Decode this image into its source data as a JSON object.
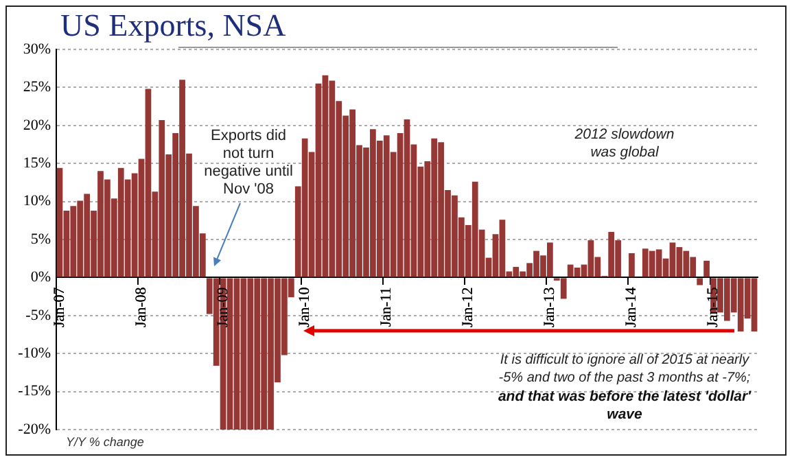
{
  "chart_data": {
    "type": "bar",
    "title": "US Exports, NSA",
    "annotations": [
      "Exports did not turn negative until Nov '08",
      "2012 slowdown was global",
      "It is difficult to ignore all of 2015 at nearly -5% and two of the past 3 months at -7%;",
      "and that was before the latest 'dollar' wave",
      "Y/Y % change"
    ],
    "categories": [
      "Jan-07",
      null,
      null,
      null,
      null,
      null,
      null,
      null,
      null,
      null,
      null,
      null,
      "Jan-08",
      null,
      null,
      null,
      null,
      null,
      null,
      null,
      null,
      null,
      null,
      null,
      "Jan-09",
      null,
      null,
      null,
      null,
      null,
      null,
      null,
      null,
      null,
      null,
      null,
      "Jan-10",
      null,
      null,
      null,
      null,
      null,
      null,
      null,
      null,
      null,
      null,
      null,
      "Jan-11",
      null,
      null,
      null,
      null,
      null,
      null,
      null,
      null,
      null,
      null,
      null,
      "Jan-12",
      null,
      null,
      null,
      null,
      null,
      null,
      null,
      null,
      null,
      null,
      null,
      "Jan-13",
      null,
      null,
      null,
      null,
      null,
      null,
      null,
      null,
      null,
      null,
      null,
      "Jan-14",
      null,
      null,
      null,
      null,
      null,
      null,
      null,
      null,
      null,
      null,
      null,
      "Jan-15",
      null,
      null,
      null,
      null,
      null,
      null
    ],
    "values": [
      14.4,
      8.8,
      9.4,
      10.1,
      11.0,
      8.8,
      14.0,
      12.9,
      10.4,
      14.4,
      12.9,
      13.7,
      15.6,
      24.8,
      11.3,
      20.7,
      16.2,
      19.0,
      26.0,
      16.3,
      9.4,
      5.8,
      -4.8,
      -11.6,
      -20,
      -20,
      -20,
      -20,
      -20,
      -20,
      -20,
      -20,
      -13.8,
      -10.2,
      -2.6,
      12.0,
      18.3,
      16.5,
      25.5,
      26.6,
      25.9,
      23.2,
      21.3,
      22.1,
      17.4,
      17.1,
      19.5,
      18.0,
      18.7,
      16.5,
      19.0,
      20.8,
      17.5,
      14.6,
      15.3,
      18.3,
      17.8,
      11.5,
      10.8,
      7.9,
      6.9,
      12.6,
      6.3,
      2.6,
      5.7,
      7.6,
      0.8,
      1.4,
      0.8,
      1.9,
      3.5,
      2.9,
      4.6,
      -0.4,
      -2.8,
      1.7,
      1.3,
      1.7,
      4.9,
      2.7,
      0.2,
      6.0,
      4.9,
      0,
      3.2,
      0,
      3.8,
      3.5,
      3.7,
      2.5,
      4.6,
      4.0,
      3.5,
      2.7,
      -1.0,
      2.2,
      -4.6,
      -4.6,
      -5.7,
      -4.6,
      -7.1,
      -5.4,
      -7.1
    ],
    "color": "#953735",
    "ylim": [
      -20,
      30
    ],
    "yticks": [
      {
        "value": -20,
        "label": "-20%"
      },
      {
        "value": -15,
        "label": "-15%"
      },
      {
        "value": -10,
        "label": "-10%"
      },
      {
        "value": -5,
        "label": "-5%"
      },
      {
        "value": 0,
        "label": "0%"
      },
      {
        "value": 5,
        "label": "5%"
      },
      {
        "value": 10,
        "label": "10%"
      },
      {
        "value": 15,
        "label": "15%"
      },
      {
        "value": 20,
        "label": "20%"
      },
      {
        "value": 25,
        "label": "25%"
      },
      {
        "value": 30,
        "label": "30%"
      }
    ],
    "grid": "y"
  }
}
